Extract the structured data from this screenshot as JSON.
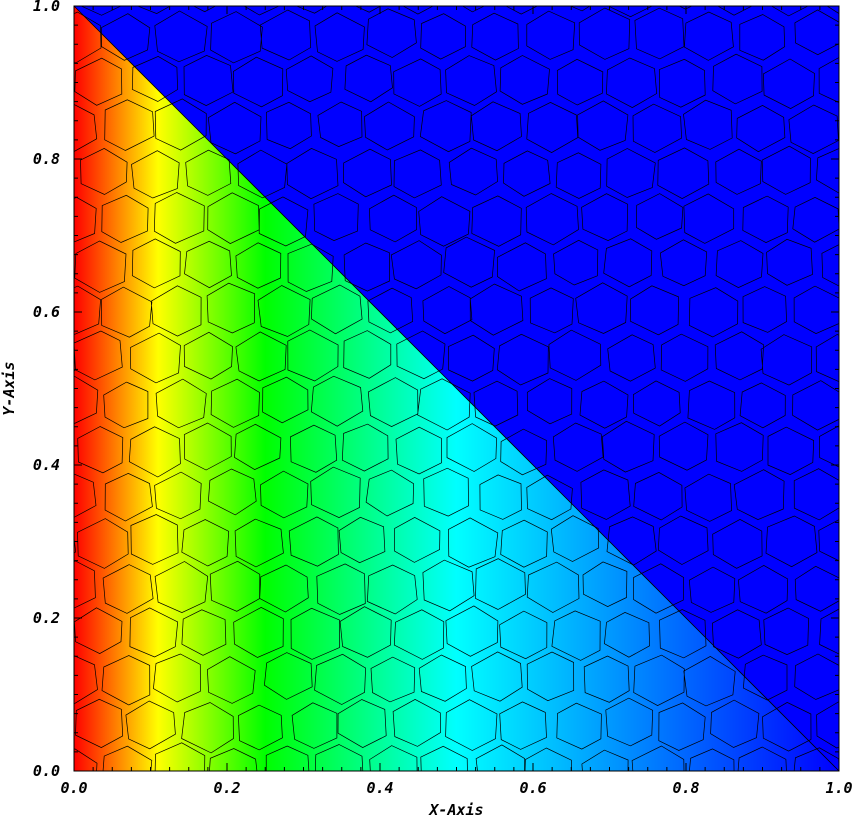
{
  "chart_data": {
    "type": "heatmap",
    "title": "",
    "xlabel": "X-Axis",
    "ylabel": "Y-Axis",
    "xlim": [
      0.0,
      1.0
    ],
    "ylim": [
      0.0,
      1.0
    ],
    "x_ticks": [
      "0.0",
      "0.2",
      "0.4",
      "0.6",
      "0.8",
      "1.0"
    ],
    "y_ticks": [
      "0.0",
      "0.2",
      "0.4",
      "0.6",
      "0.8",
      "1.0"
    ],
    "grid": false,
    "legend": "none",
    "mesh": "polygonal (Voronoi-like) cells",
    "boundary_line": {
      "from": [
        0.0,
        1.0
      ],
      "to": [
        1.0,
        0.0
      ]
    },
    "region_above_boundary_color": "#0000ff",
    "colormap": [
      "#ff0000",
      "#ffff00",
      "#00ff00",
      "#00ffff",
      "#0000ff"
    ],
    "color_stops_x": [
      0.0,
      0.11,
      0.25,
      0.5,
      1.0
    ]
  }
}
